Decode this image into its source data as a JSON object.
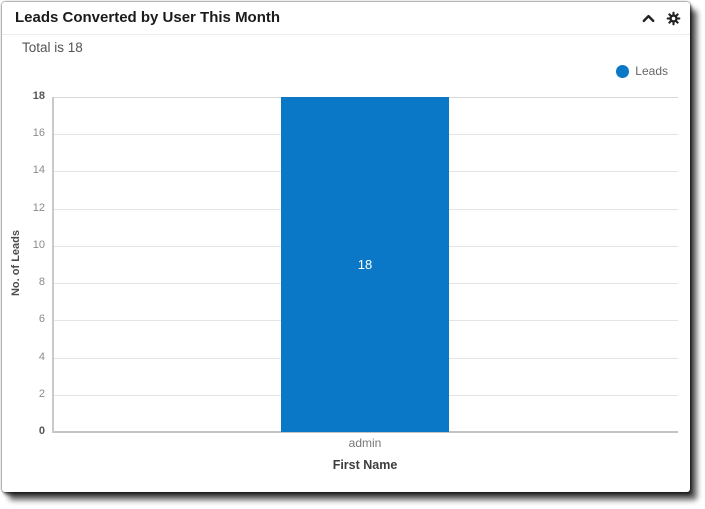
{
  "widget": {
    "title": "Leads Converted by User This Month",
    "total_text": "Total is 18"
  },
  "legend": {
    "items": [
      {
        "label": "Leads",
        "color": "#0a78c6"
      }
    ]
  },
  "chart_data": {
    "type": "bar",
    "title": "Leads Converted by User This Month",
    "categories": [
      "admin"
    ],
    "series": [
      {
        "name": "Leads",
        "color": "#0a78c6",
        "values": [
          18
        ]
      }
    ],
    "value_labels": [
      "18"
    ],
    "xlabel": "First Name",
    "ylabel": "No. of Leads",
    "ylim": [
      0,
      18
    ],
    "yticks": [
      0,
      2,
      4,
      6,
      8,
      10,
      12,
      14,
      16,
      18
    ],
    "grid": true,
    "legend_position": "top-right"
  },
  "colors": {
    "bar": "#0a78c6",
    "grid_line": "#e4e4e4",
    "axis_line": "#c3c3c3",
    "tick_label": "#8a8a8a",
    "tick_label_emphasis": "#555555",
    "bar_value_label": "#ffffff",
    "header_icon": "#222222"
  }
}
